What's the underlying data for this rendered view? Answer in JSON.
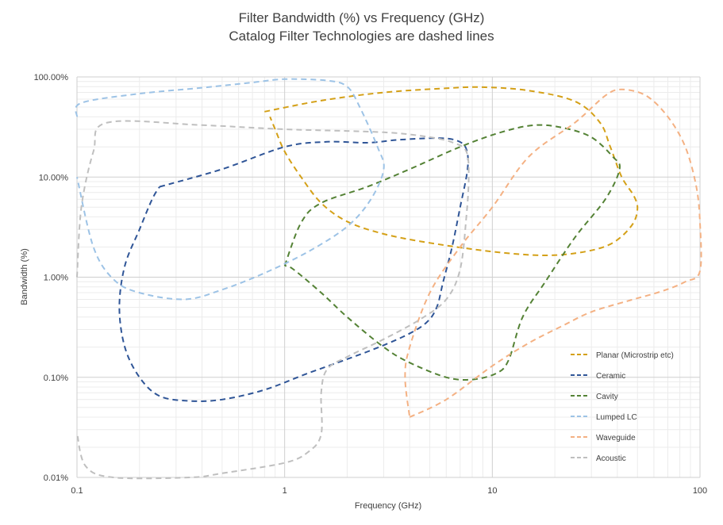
{
  "chart_data": {
    "type": "line",
    "title_line1": "Filter Bandwidth (%) vs Frequency (GHz)",
    "title_line2": "Catalog Filter Technologies are dashed lines",
    "xlabel": "Frequency (GHz)",
    "ylabel": "Bandwidth (%)",
    "x_scale": "log",
    "y_scale": "log",
    "xlim": [
      0.1,
      100
    ],
    "ylim": [
      0.01,
      100
    ],
    "x_ticks": [
      {
        "value": 0.1,
        "label": "0.1"
      },
      {
        "value": 1,
        "label": "1"
      },
      {
        "value": 10,
        "label": "10"
      },
      {
        "value": 100,
        "label": "100"
      }
    ],
    "y_ticks": [
      {
        "value": 0.01,
        "label": "0.01%"
      },
      {
        "value": 0.1,
        "label": "0.10%"
      },
      {
        "value": 1,
        "label": "1.00%"
      },
      {
        "value": 10,
        "label": "10.00%"
      },
      {
        "value": 100,
        "label": "100.00%"
      }
    ],
    "grid": true,
    "legend_position": "right",
    "series": [
      {
        "name": "Planar (Microstrip etc)",
        "color": "#d4a017",
        "points": [
          [
            0.8,
            45
          ],
          [
            1.5,
            58
          ],
          [
            3,
            70
          ],
          [
            6,
            77
          ],
          [
            9,
            79
          ],
          [
            15,
            73
          ],
          [
            25,
            57
          ],
          [
            33,
            35
          ],
          [
            37,
            20
          ],
          [
            42,
            10
          ],
          [
            48,
            6.5
          ],
          [
            50,
            4.8
          ],
          [
            47,
            3.3
          ],
          [
            38,
            2.2
          ],
          [
            28,
            1.8
          ],
          [
            18,
            1.65
          ],
          [
            10,
            1.8
          ],
          [
            5,
            2.2
          ],
          [
            3,
            2.7
          ],
          [
            2,
            3.6
          ],
          [
            1.5,
            5.5
          ],
          [
            1.2,
            10
          ],
          [
            1,
            18
          ],
          [
            0.9,
            30
          ],
          [
            0.85,
            40
          ]
        ]
      },
      {
        "name": "Ceramic",
        "color": "#2f5597",
        "points": [
          [
            0.25,
            8
          ],
          [
            0.5,
            12
          ],
          [
            1,
            20
          ],
          [
            1.6,
            22.5
          ],
          [
            2.5,
            22
          ],
          [
            3.5,
            23.5
          ],
          [
            5.5,
            24.5
          ],
          [
            6.8,
            23
          ],
          [
            7.5,
            19
          ],
          [
            7.6,
            12
          ],
          [
            7,
            5
          ],
          [
            6.4,
            2
          ],
          [
            5.8,
            0.9
          ],
          [
            5.4,
            0.5
          ],
          [
            4.8,
            0.35
          ],
          [
            3.8,
            0.26
          ],
          [
            2.5,
            0.18
          ],
          [
            1.3,
            0.11
          ],
          [
            0.8,
            0.075
          ],
          [
            0.5,
            0.06
          ],
          [
            0.35,
            0.058
          ],
          [
            0.25,
            0.065
          ],
          [
            0.2,
            0.1
          ],
          [
            0.17,
            0.2
          ],
          [
            0.16,
            0.5
          ],
          [
            0.17,
            1.3
          ],
          [
            0.2,
            3
          ],
          [
            0.23,
            6
          ],
          [
            0.25,
            8
          ]
        ]
      },
      {
        "name": "Cavity",
        "color": "#548235",
        "points": [
          [
            1,
            1.3
          ],
          [
            1.2,
            3.5
          ],
          [
            1.5,
            5.5
          ],
          [
            2.5,
            8
          ],
          [
            4,
            12
          ],
          [
            7,
            20
          ],
          [
            11,
            28
          ],
          [
            16,
            33
          ],
          [
            22,
            31
          ],
          [
            30,
            25
          ],
          [
            38,
            16
          ],
          [
            41,
            12
          ],
          [
            35,
            6
          ],
          [
            25,
            2.5
          ],
          [
            18,
            0.9
          ],
          [
            14,
            0.4
          ],
          [
            12,
            0.15
          ],
          [
            10.5,
            0.11
          ],
          [
            8,
            0.095
          ],
          [
            6,
            0.1
          ],
          [
            4,
            0.14
          ],
          [
            3,
            0.2
          ],
          [
            2,
            0.4
          ],
          [
            1.5,
            0.7
          ],
          [
            1.1,
            1.2
          ],
          [
            1,
            1.3
          ]
        ]
      },
      {
        "name": "Lumped LC",
        "color": "#9dc3e6",
        "points": [
          [
            0.1,
            40
          ],
          [
            0.105,
            55
          ],
          [
            0.2,
            68
          ],
          [
            0.4,
            78
          ],
          [
            0.7,
            88
          ],
          [
            1,
            95
          ],
          [
            1.6,
            92
          ],
          [
            2,
            80
          ],
          [
            2.3,
            50
          ],
          [
            2.8,
            20
          ],
          [
            3,
            12
          ],
          [
            2.6,
            6
          ],
          [
            2,
            3.2
          ],
          [
            1.3,
            1.8
          ],
          [
            0.8,
            1.1
          ],
          [
            0.5,
            0.75
          ],
          [
            0.33,
            0.6
          ],
          [
            0.2,
            0.7
          ],
          [
            0.15,
            0.95
          ],
          [
            0.12,
            2
          ],
          [
            0.1,
            10
          ]
        ]
      },
      {
        "name": "Waveguide",
        "color": "#f4b183",
        "points": [
          [
            4,
            0.04
          ],
          [
            6,
            0.06
          ],
          [
            10,
            0.13
          ],
          [
            15,
            0.22
          ],
          [
            22,
            0.33
          ],
          [
            30,
            0.45
          ],
          [
            45,
            0.58
          ],
          [
            65,
            0.72
          ],
          [
            85,
            0.9
          ],
          [
            100,
            1.15
          ],
          [
            100,
            3.5
          ],
          [
            96,
            8
          ],
          [
            85,
            20
          ],
          [
            70,
            40
          ],
          [
            55,
            65
          ],
          [
            42,
            75
          ],
          [
            35,
            65
          ],
          [
            25,
            35
          ],
          [
            15,
            16
          ],
          [
            10,
            5
          ],
          [
            7,
            2
          ],
          [
            5,
            0.7
          ],
          [
            4,
            0.2
          ],
          [
            3.8,
            0.1
          ],
          [
            4,
            0.04
          ]
        ]
      },
      {
        "name": "Acoustic",
        "color": "#bfbfbf",
        "points": [
          [
            0.1,
            1
          ],
          [
            0.105,
            5
          ],
          [
            0.12,
            18
          ],
          [
            0.14,
            35
          ],
          [
            0.4,
            33
          ],
          [
            1,
            30
          ],
          [
            3,
            28
          ],
          [
            5,
            25
          ],
          [
            6.5,
            22
          ],
          [
            7.5,
            18
          ],
          [
            7.7,
            10
          ],
          [
            7.5,
            4
          ],
          [
            7,
            1.2
          ],
          [
            6,
            0.6
          ],
          [
            4.5,
            0.38
          ],
          [
            3,
            0.24
          ],
          [
            2,
            0.16
          ],
          [
            1.6,
            0.12
          ],
          [
            1.5,
            0.07
          ],
          [
            1.5,
            0.027
          ],
          [
            1.3,
            0.018
          ],
          [
            1,
            0.014
          ],
          [
            0.5,
            0.011
          ],
          [
            0.35,
            0.01
          ],
          [
            0.15,
            0.01
          ],
          [
            0.11,
            0.013
          ],
          [
            0.1,
            0.028
          ]
        ]
      }
    ]
  }
}
